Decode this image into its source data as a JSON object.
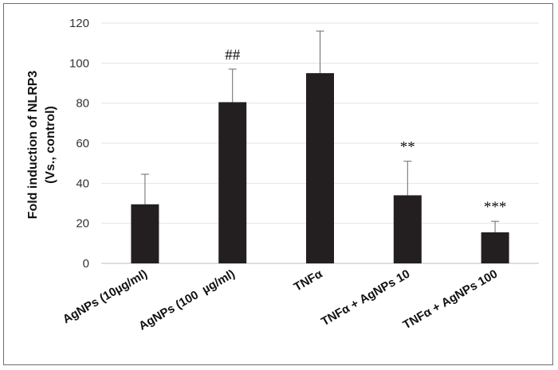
{
  "chart_data": {
    "type": "bar",
    "ylabel_lines": [
      "Fold induction of NLRP3",
      "(Vs., control)"
    ],
    "xlabel": "",
    "ylim": [
      0,
      120
    ],
    "yticks": [
      0,
      20,
      40,
      60,
      80,
      100,
      120
    ],
    "grid": true,
    "categories": [
      "AgNPs (10µg/ml)",
      "AgNPs (100  µg/ml)",
      "TNFα",
      "TNFα + AgNPs 10",
      "TNFα + AgNPs 100"
    ],
    "values": [
      29.5,
      80.5,
      95,
      34,
      15.5
    ],
    "error_plus": [
      15,
      16.5,
      21,
      17,
      5.5
    ],
    "annotations": [
      "",
      "##",
      "",
      "**",
      "***"
    ],
    "bar_color": "#231f20",
    "grid_color": "#e4e4e4"
  }
}
